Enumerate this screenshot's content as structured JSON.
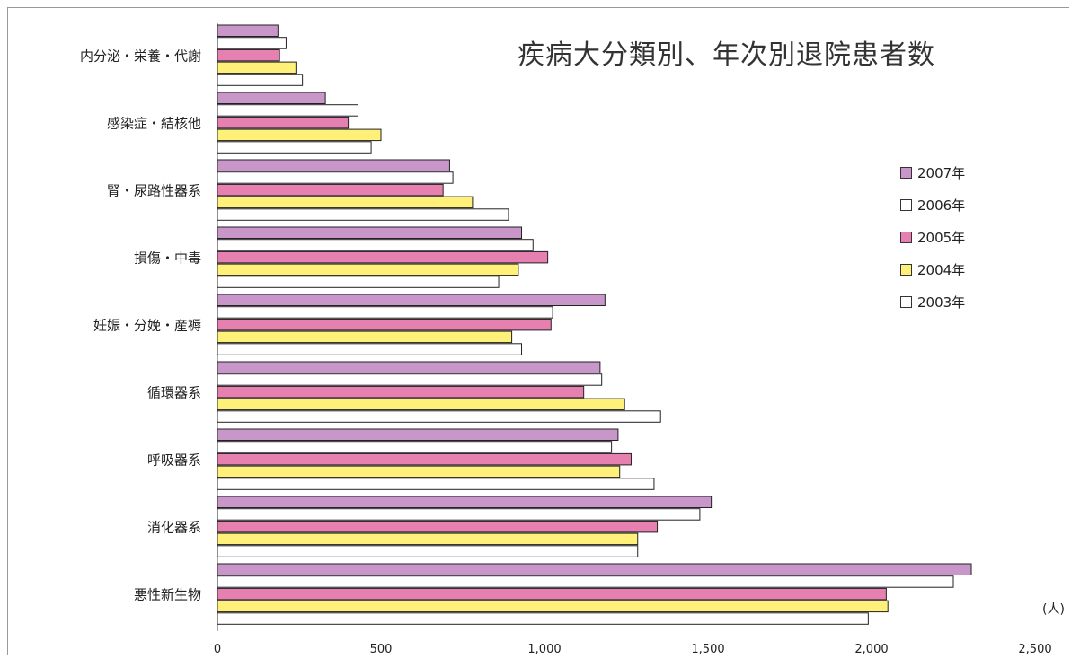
{
  "chart_data": {
    "type": "bar",
    "orientation": "horizontal",
    "title": "疾病大分類別、年次別退院患者数",
    "unit_label": "(人)",
    "categories": [
      "内分泌・栄養・代謝",
      "感染症・結核他",
      "腎・尿路性器系",
      "損傷・中毒",
      "妊娠・分娩・産褥",
      "循環器系",
      "呼吸器系",
      "消化器系",
      "悪性新生物"
    ],
    "series": [
      {
        "name": "2007年",
        "color": "#c896c8",
        "values": [
          185,
          330,
          710,
          930,
          1185,
          1170,
          1225,
          1510,
          2305
        ]
      },
      {
        "name": "2006年",
        "color": "#ffffff",
        "values": [
          210,
          430,
          720,
          965,
          1025,
          1175,
          1205,
          1475,
          2250
        ]
      },
      {
        "name": "2005年",
        "color": "#e680b0",
        "values": [
          190,
          400,
          690,
          1010,
          1020,
          1120,
          1265,
          1345,
          2045
        ]
      },
      {
        "name": "2004年",
        "color": "#fff07a",
        "values": [
          240,
          500,
          780,
          920,
          900,
          1245,
          1230,
          1285,
          2050
        ]
      },
      {
        "name": "2003年",
        "color": "#ffffff",
        "values": [
          260,
          470,
          890,
          860,
          930,
          1355,
          1335,
          1285,
          1990
        ]
      }
    ],
    "xlim": [
      0,
      2500
    ],
    "xticks": [
      "0",
      "500",
      "1,000",
      "1,500",
      "2,000",
      "2,500"
    ],
    "legend_position": "right"
  }
}
